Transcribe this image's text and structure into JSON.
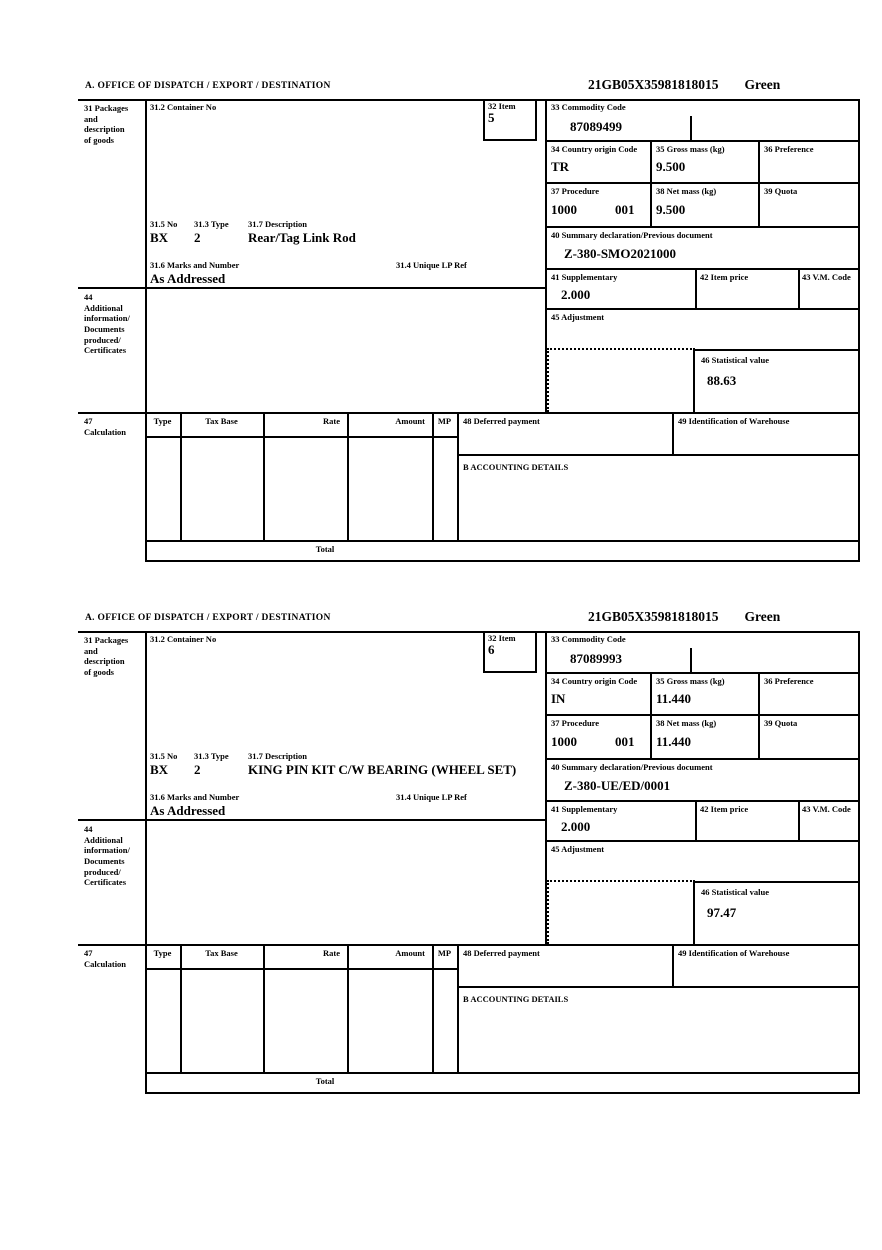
{
  "labels": {
    "section_a": "A.  OFFICE OF DISPATCH / EXPORT / DESTINATION",
    "box31": "31 Packages\nand\ndescription\nof goods",
    "box31_2": "31.2 Container No",
    "box32": "32 Item",
    "box33": "33 Commodity Code",
    "box31_5": "31.5 No",
    "box31_3": "31.3 Type",
    "box31_7": "31.7 Description",
    "box31_6": "31.6 Marks and Number",
    "box31_4": "31.4 Unique LP Ref",
    "box34": "34 Country origin Code",
    "box35": "35 Gross mass (kg)",
    "box36": "36 Preference",
    "box37": "37 Procedure",
    "box38": "38 Net mass (kg)",
    "box39": "39 Quota",
    "box40": "40 Summary declaration/Previous document",
    "box41": "41 Supplementary",
    "box42": "42 Item price",
    "box43": "43 V.M. Code",
    "box44": "44\nAdditional\ninformation/\nDocuments\nproduced/\nCertificates",
    "box45": "45 Adjustment",
    "box46": "46 Statistical value",
    "box47": "47\nCalculation",
    "col_type": "Type",
    "col_tax_base": "Tax Base",
    "col_rate": "Rate",
    "col_amount": "Amount",
    "col_mp": "MP",
    "box48": "48 Deferred payment",
    "box49": "49 Identification of Warehouse",
    "accounting": "B ACCOUNTING DETAILS",
    "total": "Total"
  },
  "sections": [
    {
      "mrn": "21GB05X35981818015",
      "status": "Green",
      "item_no": "5",
      "commodity_code": "87089499",
      "origin_code": "TR",
      "gross_mass": "9.500",
      "procedure": "1000",
      "procedure_ext": "001",
      "net_mass": "9.500",
      "package_code": "BX",
      "package_type": "2",
      "description": "Rear/Tag Link Rod",
      "marks": "As Addressed",
      "previous_document": "Z-380-SMO2021000",
      "supplementary": "2.000",
      "statistical_value": "88.63"
    },
    {
      "mrn": "21GB05X35981818015",
      "status": "Green",
      "item_no": "6",
      "commodity_code": "87089993",
      "origin_code": "IN",
      "gross_mass": "11.440",
      "procedure": "1000",
      "procedure_ext": "001",
      "net_mass": "11.440",
      "package_code": "BX",
      "package_type": "2",
      "description": "KING PIN KIT C/W BEARING (WHEEL SET)",
      "marks": "As Addressed",
      "previous_document": "Z-380-UE/ED/0001",
      "supplementary": "2.000",
      "statistical_value": "97.47"
    }
  ]
}
